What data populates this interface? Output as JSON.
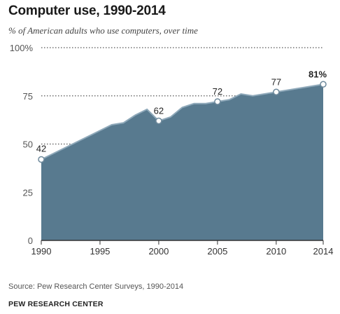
{
  "header": {
    "title": "Computer use, 1990-2014",
    "subtitle": "% of American adults who use computers, over time"
  },
  "footer": {
    "source": "Source: Pew Research Center Surveys, 1990-2014",
    "org": "PEW RESEARCH CENTER"
  },
  "colors": {
    "area": "#587A8F",
    "line": "#8FA9BA",
    "grid": "#555555"
  },
  "chart_data": {
    "type": "area",
    "title": "Computer use, 1990-2014",
    "subtitle": "% of American adults who use computers, over time",
    "xlim": [
      1990,
      2014
    ],
    "ylim": [
      0,
      100
    ],
    "x_ticks": [
      "1990",
      "1995",
      "2000",
      "2005",
      "2010",
      "2014"
    ],
    "y_ticks": [
      "0",
      "25",
      "50",
      "75",
      "100%"
    ],
    "series": [
      {
        "x": [
          1990,
          1991,
          1992,
          1993,
          1994,
          1995,
          1996,
          1997,
          1998,
          1999,
          2000,
          2001,
          2002,
          2003,
          2004,
          2005,
          2006,
          2007,
          2008,
          2009,
          2010,
          2011,
          2012,
          2013,
          2014
        ],
        "y": [
          42,
          45,
          48,
          51,
          54,
          57,
          60,
          61,
          65,
          68,
          62,
          64,
          69,
          71,
          71,
          72,
          73,
          76,
          75,
          76,
          77,
          78,
          79,
          80,
          81
        ]
      }
    ],
    "data_labels": [
      {
        "x": 1990,
        "y": 42,
        "label": "42"
      },
      {
        "x": 2000,
        "y": 62,
        "label": "62"
      },
      {
        "x": 2005,
        "y": 72,
        "label": "72"
      },
      {
        "x": 2010,
        "y": 77,
        "label": "77"
      },
      {
        "x": 2014,
        "y": 81,
        "label": "81%"
      }
    ],
    "grid": true
  }
}
